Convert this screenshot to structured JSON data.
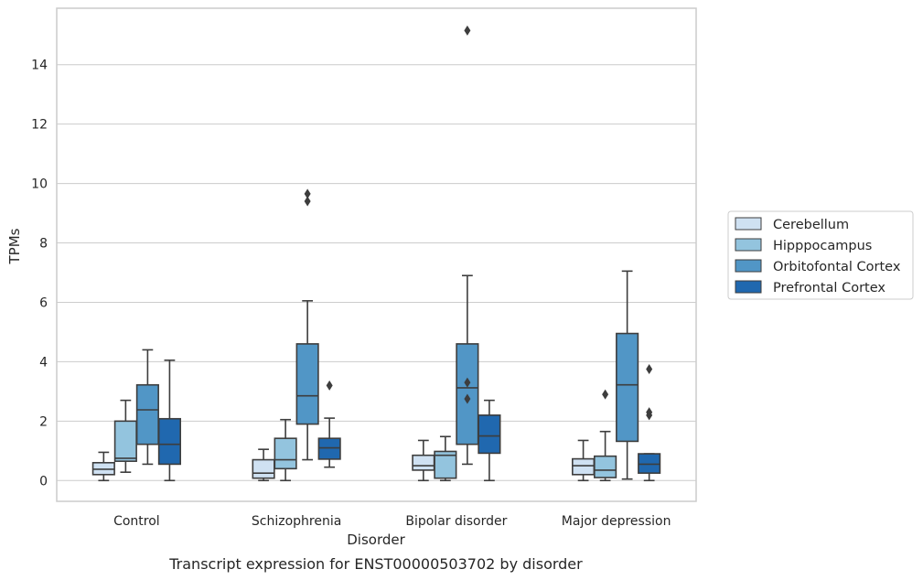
{
  "chart_data": {
    "type": "box",
    "title": "",
    "caption": "Transcript expression for ENST00000503702 by disorder",
    "xlabel": "Disorder",
    "ylabel": "TPMs",
    "ylim": [
      -0.7,
      15.9
    ],
    "yticks": [
      0,
      2,
      4,
      6,
      8,
      10,
      12,
      14
    ],
    "grid": "horizontal",
    "legend_position": "right",
    "categories": [
      "Control",
      "Schizophrenia",
      "Bipolar disorder",
      "Major depression"
    ],
    "series": [
      {
        "name": "Cerebellum",
        "color": "#cfe1f2",
        "boxes": [
          {
            "whislo": 0.0,
            "q1": 0.2,
            "med": 0.38,
            "q3": 0.6,
            "whishi": 0.95,
            "fliers": []
          },
          {
            "whislo": 0.0,
            "q1": 0.08,
            "med": 0.25,
            "q3": 0.7,
            "whishi": 1.05,
            "fliers": []
          },
          {
            "whislo": 0.0,
            "q1": 0.35,
            "med": 0.5,
            "q3": 0.85,
            "whishi": 1.35,
            "fliers": []
          },
          {
            "whislo": 0.0,
            "q1": 0.2,
            "med": 0.5,
            "q3": 0.73,
            "whishi": 1.35,
            "fliers": []
          }
        ]
      },
      {
        "name": "Hipppocampus",
        "color": "#93c4de",
        "boxes": [
          {
            "whislo": 0.28,
            "q1": 0.65,
            "med": 0.75,
            "q3": 2.0,
            "whishi": 2.7,
            "fliers": []
          },
          {
            "whislo": 0.0,
            "q1": 0.4,
            "med": 0.7,
            "q3": 1.42,
            "whishi": 2.05,
            "fliers": []
          },
          {
            "whislo": 0.0,
            "q1": 0.08,
            "med": 0.85,
            "q3": 0.98,
            "whishi": 1.48,
            "fliers": []
          },
          {
            "whislo": 0.0,
            "q1": 0.1,
            "med": 0.35,
            "q3": 0.82,
            "whishi": 1.65,
            "fliers": [
              2.9
            ]
          }
        ]
      },
      {
        "name": "Orbitofontal Cortex",
        "color": "#5196c6",
        "boxes": [
          {
            "whislo": 0.55,
            "q1": 1.22,
            "med": 2.38,
            "q3": 3.22,
            "whishi": 4.4,
            "fliers": []
          },
          {
            "whislo": 0.7,
            "q1": 1.9,
            "med": 2.85,
            "q3": 4.6,
            "whishi": 6.05,
            "fliers": [
              9.4,
              9.65
            ]
          },
          {
            "whislo": 0.55,
            "q1": 1.22,
            "med": 3.12,
            "q3": 4.6,
            "whishi": 6.9,
            "fliers": [
              2.75,
              3.3,
              15.15
            ]
          },
          {
            "whislo": 0.05,
            "q1": 1.32,
            "med": 3.22,
            "q3": 4.95,
            "whishi": 7.05,
            "fliers": []
          }
        ]
      },
      {
        "name": "Prefrontal Cortex",
        "color": "#2068af",
        "boxes": [
          {
            "whislo": 0.0,
            "q1": 0.55,
            "med": 1.22,
            "q3": 2.08,
            "whishi": 4.05,
            "fliers": []
          },
          {
            "whislo": 0.45,
            "q1": 0.72,
            "med": 1.1,
            "q3": 1.42,
            "whishi": 2.1,
            "fliers": [
              3.2
            ]
          },
          {
            "whislo": 0.0,
            "q1": 0.92,
            "med": 1.5,
            "q3": 2.2,
            "whishi": 2.7,
            "fliers": []
          },
          {
            "whislo": 0.0,
            "q1": 0.25,
            "med": 0.55,
            "q3": 0.9,
            "whishi": 0.9,
            "fliers": [
              2.2,
              2.3,
              3.75
            ]
          }
        ]
      }
    ]
  }
}
